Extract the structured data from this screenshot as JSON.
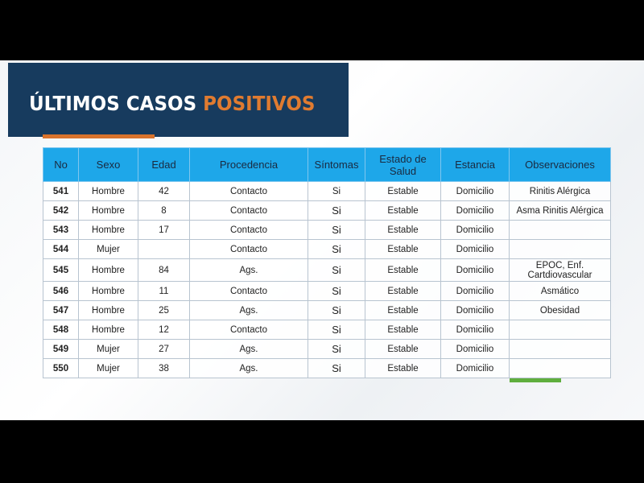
{
  "title": {
    "main": "ÚLTIMOS CASOS ",
    "accent": "POSITIVOS"
  },
  "colors": {
    "banner": "#173b5e",
    "accent": "#e07b30",
    "header": "#1ea7e9",
    "green": "#5fae3e"
  },
  "columns": [
    "No",
    "Sexo",
    "Edad",
    "Procedencia",
    "Síntomas",
    "Estado de Salud",
    "Estancia",
    "Observaciones"
  ],
  "rows": [
    [
      "541",
      "Hombre",
      "42",
      "Contacto",
      "Si",
      "Estable",
      "Domicilio",
      "Rinitis Alérgica"
    ],
    [
      "542",
      "Hombre",
      "8",
      "Contacto",
      "Si",
      "Estable",
      "Domicilio",
      "Asma Rinitis Alérgica"
    ],
    [
      "543",
      "Hombre",
      "17",
      "Contacto",
      "Si",
      "Estable",
      "Domicilio",
      ""
    ],
    [
      "544",
      "Mujer",
      "",
      "Contacto",
      "Si",
      "Estable",
      "Domicilio",
      ""
    ],
    [
      "545",
      "Hombre",
      "84",
      "Ags.",
      "Si",
      "Estable",
      "Domicilio",
      "EPOC, Enf. Cartdiovascular"
    ],
    [
      "546",
      "Hombre",
      "11",
      "Contacto",
      "Si",
      "Estable",
      "Domicilio",
      "Asmático"
    ],
    [
      "547",
      "Hombre",
      "25",
      "Ags.",
      "Si",
      "Estable",
      "Domicilio",
      "Obesidad"
    ],
    [
      "548",
      "Hombre",
      "12",
      "Contacto",
      "Si",
      "Estable",
      "Domicilio",
      ""
    ],
    [
      "549",
      "Mujer",
      "27",
      "Ags.",
      "Si",
      "Estable",
      "Domicilio",
      ""
    ],
    [
      "550",
      "Mujer",
      "38",
      "Ags.",
      "Si",
      "Estable",
      "Domicilio",
      ""
    ]
  ]
}
